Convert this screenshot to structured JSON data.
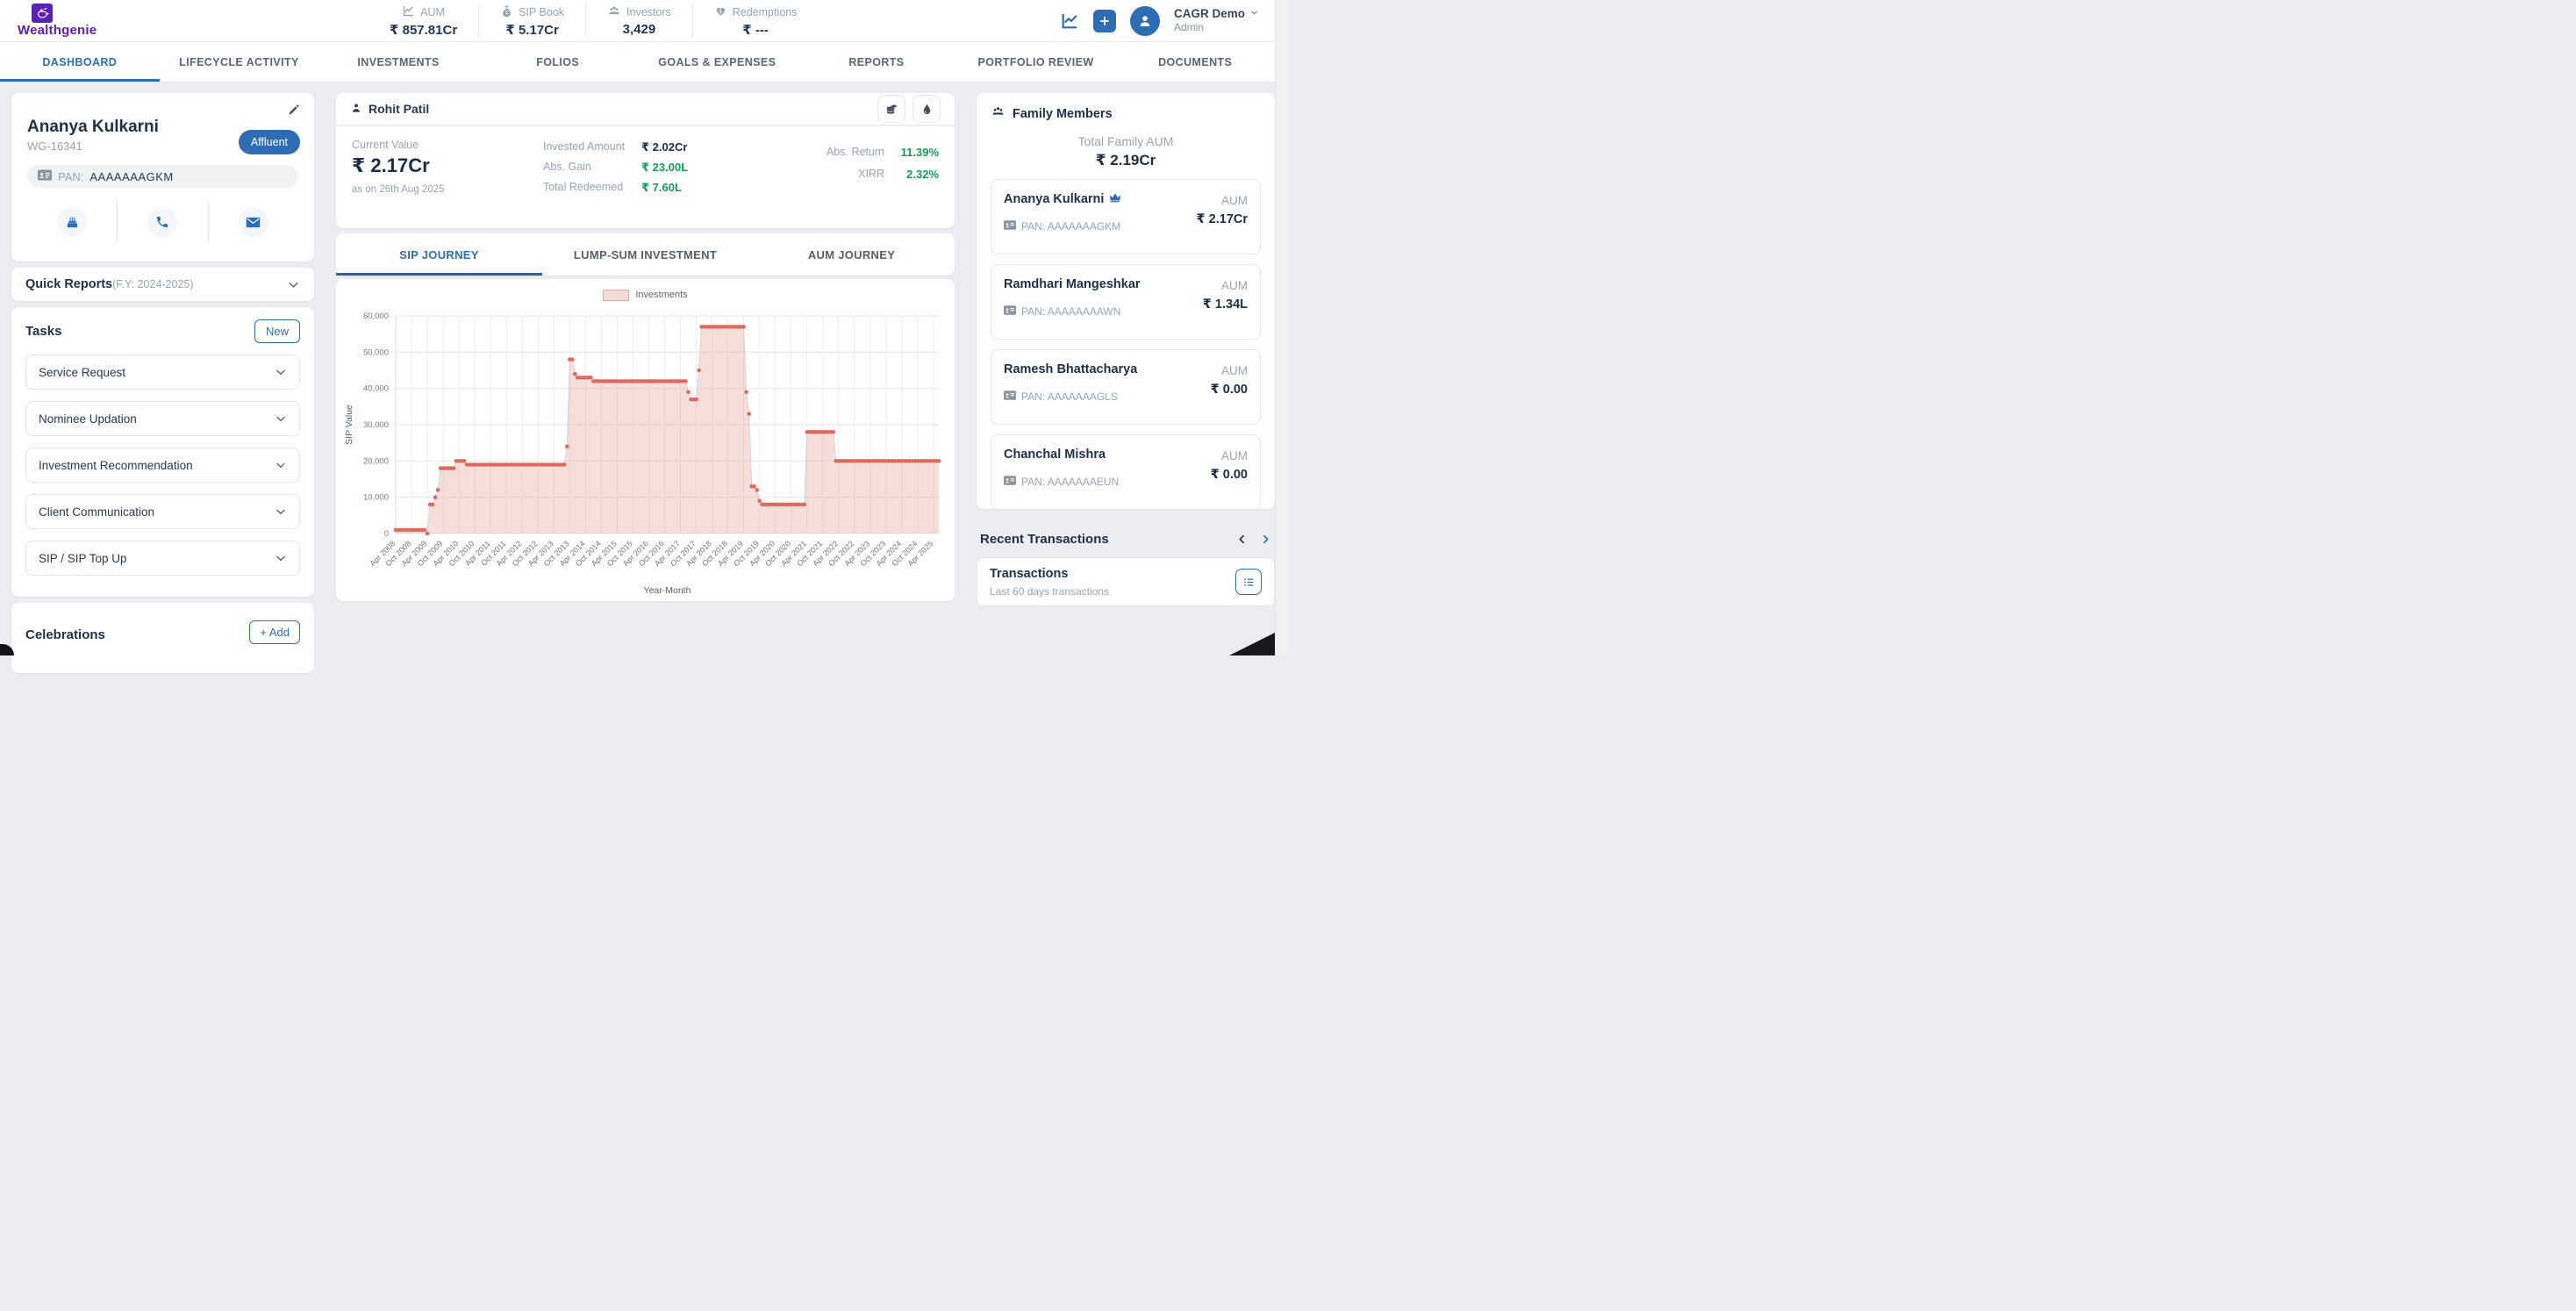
{
  "header": {
    "logo_text": "Wealthgenie",
    "stats": [
      {
        "icon": "line-chart-icon",
        "label": "AUM",
        "value": "₹ 857.81Cr"
      },
      {
        "icon": "money-bag-icon",
        "label": "SIP Book",
        "value": "₹ 5.17Cr"
      },
      {
        "icon": "people-icon",
        "label": "Investors",
        "value": "3,429"
      },
      {
        "icon": "broken-heart-icon",
        "label": "Redemptions",
        "value": "₹ ---"
      }
    ],
    "user": {
      "name": "CAGR Demo",
      "role": "Admin"
    }
  },
  "nav": {
    "tabs": [
      {
        "label": "DASHBOARD"
      },
      {
        "label": "LIFECYCLE ACTIVITY"
      },
      {
        "label": "INVESTMENTS"
      },
      {
        "label": "FOLIOS"
      },
      {
        "label": "GOALS & EXPENSES"
      },
      {
        "label": "REPORTS"
      },
      {
        "label": "PORTFOLIO REVIEW"
      },
      {
        "label": "DOCUMENTS"
      }
    ]
  },
  "client_card": {
    "name": "Ananya Kulkarni",
    "code": "WG-16341",
    "badge": "Affluent",
    "pan_label": "PAN:",
    "pan_value": "AAAAAAAGKM"
  },
  "quick_reports": {
    "title": "Quick Reports",
    "subtitle": "(F.Y: 2024-2025)"
  },
  "tasks": {
    "title": "Tasks",
    "new_label": "New",
    "items": [
      {
        "label": "Service Request"
      },
      {
        "label": "Nominee Updation"
      },
      {
        "label": "Investment Recommendation"
      },
      {
        "label": "Client Communication"
      },
      {
        "label": "SIP / SIP Top Up"
      }
    ]
  },
  "celebrations": {
    "title": "Celebrations",
    "add_label": "+ Add"
  },
  "main": {
    "investor_name": "Rohit Patil",
    "stats": {
      "current_value_label": "Current Value",
      "current_value": "₹ 2.17Cr",
      "as_on": "as on 26th Aug 2025",
      "invested_label": "Invested Amount",
      "invested": "₹ 2.02Cr",
      "abs_gain_label": "Abs. Gain",
      "abs_gain": "₹ 23.00L",
      "total_redeemed_label": "Total Redeemed",
      "total_redeemed": "₹ 7.60L",
      "abs_return_label": "Abs. Return",
      "abs_return": "11.39%",
      "xirr_label": "XIRR",
      "xirr": "2.32%"
    },
    "tabs": [
      {
        "label": "SIP JOURNEY"
      },
      {
        "label": "LUMP-SUM INVESTMENT"
      },
      {
        "label": "AUM JOURNEY"
      }
    ]
  },
  "chart_data": {
    "type": "area",
    "series_name": "Investments",
    "legend": [
      "Investments"
    ],
    "legend_position": "top",
    "xlabel": "Year-Month",
    "ylabel": "SIP Value",
    "ylim": [
      0,
      60000
    ],
    "yticks": [
      0,
      10000,
      20000,
      30000,
      40000,
      50000,
      60000
    ],
    "grid": true,
    "x_start": "2008-04",
    "x_unit": "month",
    "xtick_labels": [
      "Apr 2008",
      "Oct 2008",
      "Apr 2009",
      "Oct 2009",
      "Apr 2010",
      "Oct 2010",
      "Apr 2011",
      "Oct 2011",
      "Apr 2012",
      "Oct 2012",
      "Apr 2013",
      "Oct 2013",
      "Apr 2014",
      "Oct 2014",
      "Apr 2015",
      "Oct 2015",
      "Apr 2016",
      "Oct 2016",
      "Apr 2017",
      "Oct 2017",
      "Apr 2018",
      "Oct 2018",
      "Apr 2019",
      "Oct 2019",
      "Apr 2020",
      "Oct 2020",
      "Apr 2021",
      "Oct 2021",
      "Apr 2022",
      "Oct 2022",
      "Apr 2023",
      "Oct 2023",
      "Apr 2024",
      "Oct 2024",
      "Apr 2025"
    ],
    "xticks_every": 6,
    "segments": [
      {
        "start": "2008-04",
        "months": 12,
        "value": 1000
      },
      {
        "start": "2009-04",
        "months": 1,
        "value": 0
      },
      {
        "start": "2009-05",
        "months": 2,
        "value": 8000
      },
      {
        "start": "2009-07",
        "months": 1,
        "value": 10000
      },
      {
        "start": "2009-08",
        "months": 1,
        "value": 12000
      },
      {
        "start": "2009-09",
        "months": 6,
        "value": 18000
      },
      {
        "start": "2010-03",
        "months": 4,
        "value": 20000
      },
      {
        "start": "2010-07",
        "months": 38,
        "value": 19000
      },
      {
        "start": "2013-09",
        "months": 1,
        "value": 24000
      },
      {
        "start": "2013-10",
        "months": 2,
        "value": 48000
      },
      {
        "start": "2013-12",
        "months": 1,
        "value": 44000
      },
      {
        "start": "2014-01",
        "months": 6,
        "value": 43000
      },
      {
        "start": "2014-07",
        "months": 36,
        "value": 42000
      },
      {
        "start": "2017-07",
        "months": 1,
        "value": 39000
      },
      {
        "start": "2017-08",
        "months": 3,
        "value": 37000
      },
      {
        "start": "2017-11",
        "months": 1,
        "value": 45000
      },
      {
        "start": "2017-12",
        "months": 17,
        "value": 57000
      },
      {
        "start": "2019-05",
        "months": 1,
        "value": 39000
      },
      {
        "start": "2019-06",
        "months": 1,
        "value": 33000
      },
      {
        "start": "2019-07",
        "months": 2,
        "value": 13000
      },
      {
        "start": "2019-09",
        "months": 1,
        "value": 12000
      },
      {
        "start": "2019-10",
        "months": 1,
        "value": 9000
      },
      {
        "start": "2019-11",
        "months": 17,
        "value": 8000
      },
      {
        "start": "2021-04",
        "months": 11,
        "value": 28000
      },
      {
        "start": "2022-03",
        "months": 40,
        "value": 20000
      }
    ],
    "colors": {
      "point": "#dd6b5d",
      "fill": "rgba(221,107,93,0.22)",
      "line": "#d4d4d4"
    }
  },
  "family": {
    "title": "Family Members",
    "total_label": "Total Family AUM",
    "total_value": "₹ 2.19Cr",
    "members": [
      {
        "name": "Ananya Kulkarni",
        "crown": true,
        "pan": "PAN: AAAAAAAGKM",
        "aum_label": "AUM",
        "aum": "₹ 2.17Cr"
      },
      {
        "name": "Ramdhari Mangeshkar",
        "crown": false,
        "pan": "PAN: AAAAAAAAWN",
        "aum_label": "AUM",
        "aum": "₹ 1.34L"
      },
      {
        "name": "Ramesh Bhattacharya",
        "crown": false,
        "pan": "PAN: AAAAAAAGLS",
        "aum_label": "AUM",
        "aum": "₹ 0.00"
      },
      {
        "name": "Chanchal Mishra",
        "crown": false,
        "pan": "PAN: AAAAAAAEUN",
        "aum_label": "AUM",
        "aum": "₹ 0.00"
      }
    ]
  },
  "recent": {
    "title": "Recent Transactions",
    "card_title": "Transactions",
    "card_subtitle": "Last 60 days transactions"
  },
  "colors": {
    "accent": "#2e6db4",
    "purple": "#5b21b6",
    "green": "#189a57",
    "chart_red": "#dd6b5d",
    "text_dark": "#1f2c43",
    "text_grey": "#9aa3b1"
  }
}
